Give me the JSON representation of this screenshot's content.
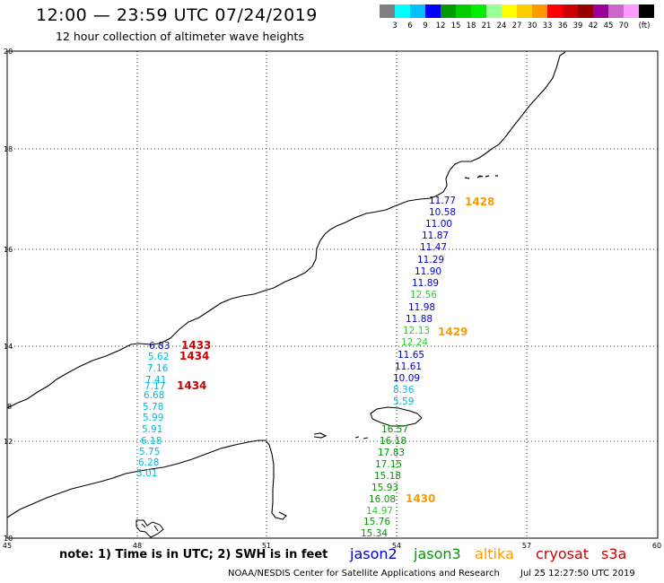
{
  "header": {
    "title": "12:00 — 23:59 UTC 07/24/2019",
    "subtitle": "12 hour collection of altimeter wave heights"
  },
  "colorbar": {
    "colors": [
      "#808080",
      "#00ffff",
      "#00bfff",
      "#0000ff",
      "#009900",
      "#00cc00",
      "#00ee00",
      "#99ff99",
      "#ffff00",
      "#ffcc00",
      "#ff9900",
      "#ff0000",
      "#cc0000",
      "#990000",
      "#990099",
      "#cc66cc",
      "#ff99ff",
      "#000000"
    ],
    "labels": [
      "3",
      "6",
      "9",
      "12",
      "15",
      "18",
      "21",
      "24",
      "27",
      "30",
      "33",
      "36",
      "39",
      "42",
      "45",
      "70",
      "(ft)"
    ]
  },
  "map": {
    "lon_ticks": [
      "45",
      "48",
      "51",
      "54",
      "57",
      "60"
    ],
    "lat_ticks": [
      "20",
      "18",
      "16",
      "14",
      "12",
      "10"
    ],
    "side_label": "8"
  },
  "tracks": [
    {
      "name": "jason2",
      "color": "#0000cc",
      "times": [
        "1428",
        "1429"
      ],
      "values": [
        "11.77",
        "10.58",
        "11.00",
        "11.87",
        "11.47",
        "11.29",
        "11.90",
        "11.89",
        "12.56",
        "11.98",
        "11.88",
        "12.13",
        "12.24",
        "11.65",
        "11.61",
        "10.09",
        "8.36",
        "5.59"
      ]
    },
    {
      "name": "jason3",
      "color": "#009900",
      "times": [
        "1430"
      ],
      "values": [
        "16.57",
        "16.18",
        "17.83",
        "17.15",
        "15.18",
        "15.93",
        "16.08",
        "14.97",
        "15.76",
        "15.34"
      ]
    },
    {
      "name": "cryosat",
      "color": "#cc0000",
      "times": [
        "1433",
        "1434",
        "1434"
      ],
      "values": [
        "6.83",
        "5.62",
        "7.16",
        "7.41",
        "7.17",
        "6.68",
        "5.78",
        "5.99",
        "5.91",
        "6.18",
        "5.75",
        "6.28",
        "5.01"
      ]
    }
  ],
  "footer": {
    "note": "note: 1) Time is in UTC; 2) SWH is in feet",
    "satellites": [
      {
        "name": "jason2",
        "color": "#0000cc"
      },
      {
        "name": "jason3",
        "color": "#009900"
      },
      {
        "name": "altika",
        "color": "#ff9900"
      },
      {
        "name": "cryosat",
        "color": "#cc0000"
      },
      {
        "name": "s3a",
        "color": "#cc0000"
      }
    ],
    "credit": "NOAA/NESDIS Center for Satellite Applications and Research",
    "timestamp": "Jul 25 12:27:50 UTC 2019"
  }
}
